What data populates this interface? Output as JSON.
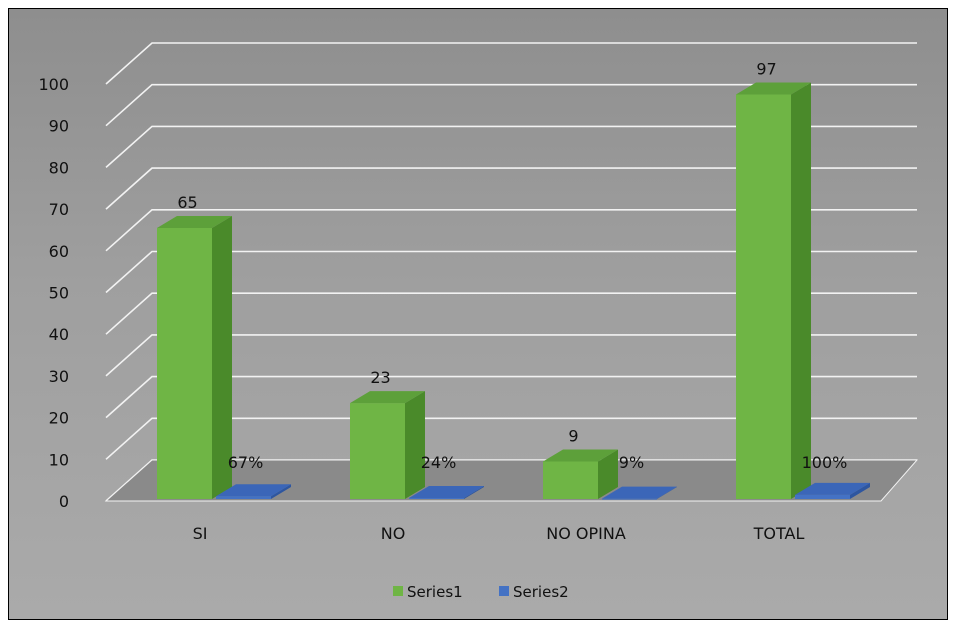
{
  "chart_data": {
    "type": "bar",
    "categories": [
      "SI",
      "NO",
      "NO OPINA",
      "TOTAL"
    ],
    "series": [
      {
        "name": "Series1",
        "values": [
          65,
          23,
          9,
          97
        ],
        "labels": [
          "65",
          "23",
          "9",
          "97"
        ]
      },
      {
        "name": "Series2",
        "values": [
          0.67,
          0.24,
          0.09,
          1.0
        ],
        "labels": [
          "67%",
          "24%",
          "9%",
          "100%"
        ]
      }
    ],
    "ylim": [
      0,
      100
    ],
    "yticks": [
      0,
      10,
      20,
      30,
      40,
      50,
      60,
      70,
      80,
      90,
      100
    ],
    "grid": true,
    "legend": "bottom",
    "style": "3d-clustered-column"
  },
  "colors": {
    "series1_front": "#6fb545",
    "series1_side": "#4a8a2a",
    "series1_top": "#5da03a",
    "series2_front": "#4472c4",
    "series2_side": "#2e56a0",
    "series2_top": "#3b66b8",
    "gridline": "#f2f2f2"
  }
}
